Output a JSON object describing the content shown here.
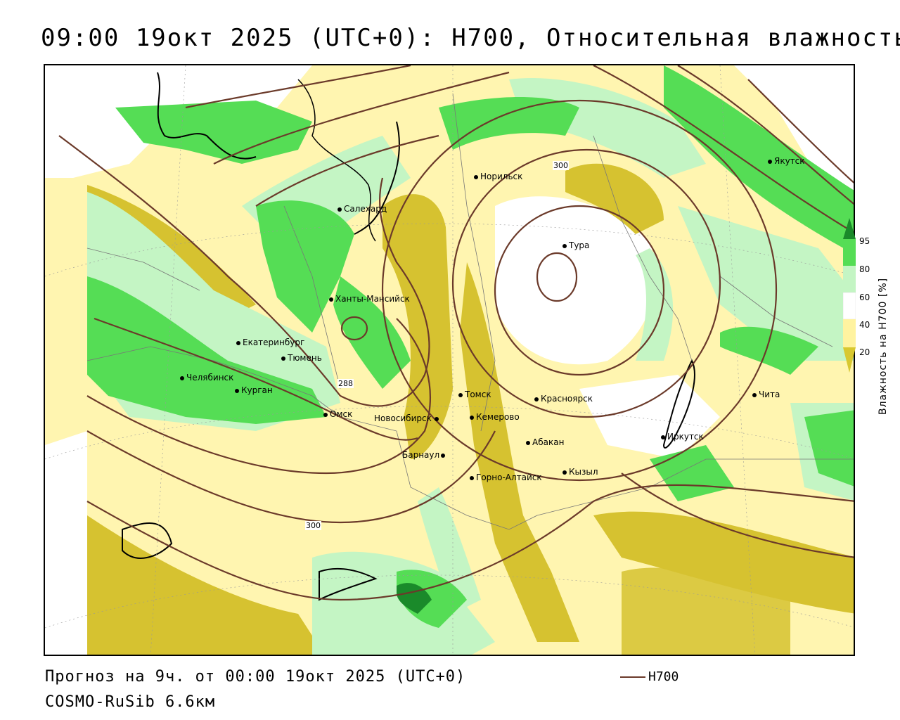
{
  "title": "09:00 19окт 2025 (UTC+0): H700, Относительная влажность",
  "footer": {
    "forecast": "Прогноз на 9ч. от 00:00 19окт 2025 (UTC+0)",
    "model": "COSMO-RuSib 6.6км"
  },
  "legend": {
    "line_label": "H700",
    "line_color": "#6b3a2a"
  },
  "colorbar": {
    "label": "Влажность на H700 [%]",
    "ticks": [
      "95",
      "80",
      "60",
      "40",
      "20"
    ],
    "colors": [
      "#1a8a2a",
      "#55dd55",
      "#c4f5c4",
      "#ffffff",
      "#fff3a0",
      "#d8c830"
    ]
  },
  "cities": [
    {
      "name": "Якутск"
    },
    {
      "name": "Норильск"
    },
    {
      "name": "Салехард"
    },
    {
      "name": "Тура"
    },
    {
      "name": "Ханты-Мансийск"
    },
    {
      "name": "Екатеринбург"
    },
    {
      "name": "Тюмень"
    },
    {
      "name": "Челябинск"
    },
    {
      "name": "Курган"
    },
    {
      "name": "Омск"
    },
    {
      "name": "Новосибирск"
    },
    {
      "name": "Томск"
    },
    {
      "name": "Кемерово"
    },
    {
      "name": "Красноярск"
    },
    {
      "name": "Барнаул"
    },
    {
      "name": "Абакан"
    },
    {
      "name": "Горно-Алтайск"
    },
    {
      "name": "Кызыл"
    },
    {
      "name": "Иркутск"
    },
    {
      "name": "Чита"
    }
  ],
  "contour_labels": [
    "300",
    "288",
    "300"
  ]
}
